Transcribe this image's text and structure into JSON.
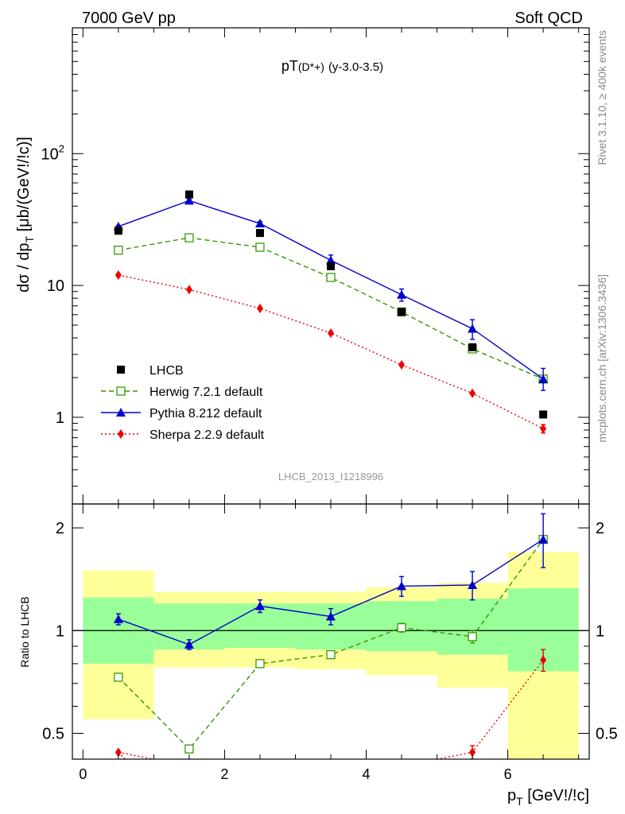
{
  "header": {
    "left": "7000 GeV pp",
    "right": "Soft QCD"
  },
  "side_labels": {
    "rivet": "Rivet 3.1.10, ≥ 400k events",
    "mcplots": "mcplots.cern.ch [arXiv:1306.3436]"
  },
  "main_title": {
    "prefix": "pT",
    "particle": "(D*+)",
    "suffix": "(y-3.0-3.5)"
  },
  "watermark": "LHCB_2013_I1218996",
  "legend": [
    {
      "label": "LHCB",
      "color": "#000000",
      "marker": "square-filled"
    },
    {
      "label": "Herwig 7.2.1 default",
      "color": "#339900",
      "marker": "square-open"
    },
    {
      "label": "Pythia 8.212 default",
      "color": "#0000cc",
      "marker": "triangle"
    },
    {
      "label": "Sherpa 2.2.9 default",
      "color": "#ee0000",
      "marker": "diamond"
    }
  ],
  "colors": {
    "band_inner": "#99ff99",
    "band_outer": "#ffff99",
    "data": "#000000",
    "herwig": "#339900",
    "pythia": "#0000cc",
    "sherpa": "#ee0000"
  },
  "chart_data": [
    {
      "type": "line",
      "panel": "main",
      "ylabel": "dσ / dp_T [μb/(GeV!/!c)]",
      "yscale": "log",
      "ylim": [
        0.22,
        900
      ],
      "xlim": [
        -0.15,
        7.15
      ],
      "x_ticks": [
        "0",
        "2",
        "4",
        "6"
      ],
      "y_ticks": [
        "1",
        "10",
        "10^2"
      ],
      "x": [
        0.5,
        1.5,
        2.5,
        3.5,
        4.5,
        5.5,
        6.5
      ],
      "series": [
        {
          "name": "LHCB",
          "values": [
            26,
            49,
            25,
            14,
            6.3,
            3.4,
            1.05
          ]
        },
        {
          "name": "Herwig 7.2.1 default",
          "values": [
            18.5,
            23,
            19.5,
            11.5,
            6.3,
            3.3,
            1.95
          ]
        },
        {
          "name": "Pythia 8.212 default",
          "values": [
            28,
            44,
            29.5,
            15.5,
            8.5,
            4.7,
            1.95
          ],
          "err_lo": [
            0.5,
            1,
            1,
            1.5,
            0.9,
            0.8,
            0.35
          ],
          "err_hi": [
            0.5,
            1,
            1,
            1.5,
            0.9,
            0.8,
            0.4
          ]
        },
        {
          "name": "Sherpa 2.2.9 default",
          "values": [
            12,
            9.3,
            6.7,
            4.35,
            2.5,
            1.52,
            0.82
          ],
          "err_lo": [
            0,
            0,
            0,
            0,
            0,
            0,
            0.06
          ],
          "err_hi": [
            0,
            0,
            0,
            0,
            0,
            0,
            0.06
          ]
        }
      ]
    },
    {
      "type": "line",
      "panel": "ratio",
      "ylabel": "Ratio to LHCB",
      "yscale": "log",
      "ylim": [
        0.42,
        2.35
      ],
      "xlim": [
        -0.15,
        7.15
      ],
      "xlabel": "p_T [GeV!/!c]",
      "x_ticks": [
        "0",
        "2",
        "4",
        "6"
      ],
      "y_ticks": [
        "0.5",
        "1",
        "2"
      ],
      "bands": [
        {
          "x0": 0,
          "x1": 1,
          "inner": [
            0.8,
            1.25
          ],
          "outer": [
            0.55,
            1.5
          ]
        },
        {
          "x0": 1,
          "x1": 2,
          "inner": [
            0.88,
            1.2
          ],
          "outer": [
            0.78,
            1.3
          ]
        },
        {
          "x0": 2,
          "x1": 3,
          "inner": [
            0.89,
            1.2
          ],
          "outer": [
            0.78,
            1.3
          ]
        },
        {
          "x0": 3,
          "x1": 4,
          "inner": [
            0.88,
            1.2
          ],
          "outer": [
            0.77,
            1.3
          ]
        },
        {
          "x0": 4,
          "x1": 5,
          "inner": [
            0.87,
            1.22
          ],
          "outer": [
            0.74,
            1.34
          ]
        },
        {
          "x0": 5,
          "x1": 6,
          "inner": [
            0.85,
            1.24
          ],
          "outer": [
            0.68,
            1.38
          ]
        },
        {
          "x0": 6,
          "x1": 7,
          "inner": [
            0.76,
            1.33
          ],
          "outer": [
            0.42,
            1.7
          ]
        }
      ],
      "x": [
        0.5,
        1.5,
        2.5,
        3.5,
        4.5,
        5.5,
        6.5
      ],
      "series": [
        {
          "name": "Herwig 7.2.1 default",
          "values": [
            0.73,
            0.45,
            0.8,
            0.85,
            1.02,
            0.96,
            1.85
          ],
          "err_lo": [
            0,
            0,
            0,
            0,
            0.03,
            0.04,
            0.02
          ],
          "err_hi": [
            0,
            0,
            0,
            0,
            0.03,
            0.04,
            0.02
          ]
        },
        {
          "name": "Pythia 8.212 default",
          "values": [
            1.08,
            0.91,
            1.18,
            1.1,
            1.35,
            1.36,
            1.85
          ],
          "err_lo": [
            0.04,
            0.03,
            0.05,
            0.06,
            0.09,
            0.13,
            0.32
          ],
          "err_hi": [
            0.04,
            0.03,
            0.05,
            0.06,
            0.09,
            0.13,
            0.35
          ]
        },
        {
          "name": "Sherpa 2.2.9 default",
          "values": [
            0.44,
            0.4,
            null,
            null,
            0.4,
            0.44,
            0.82
          ],
          "err_lo": [
            0,
            0,
            0,
            0,
            0,
            0.02,
            0.06
          ],
          "err_hi": [
            0,
            0,
            0,
            0,
            0,
            0.02,
            0.06
          ]
        }
      ]
    }
  ]
}
